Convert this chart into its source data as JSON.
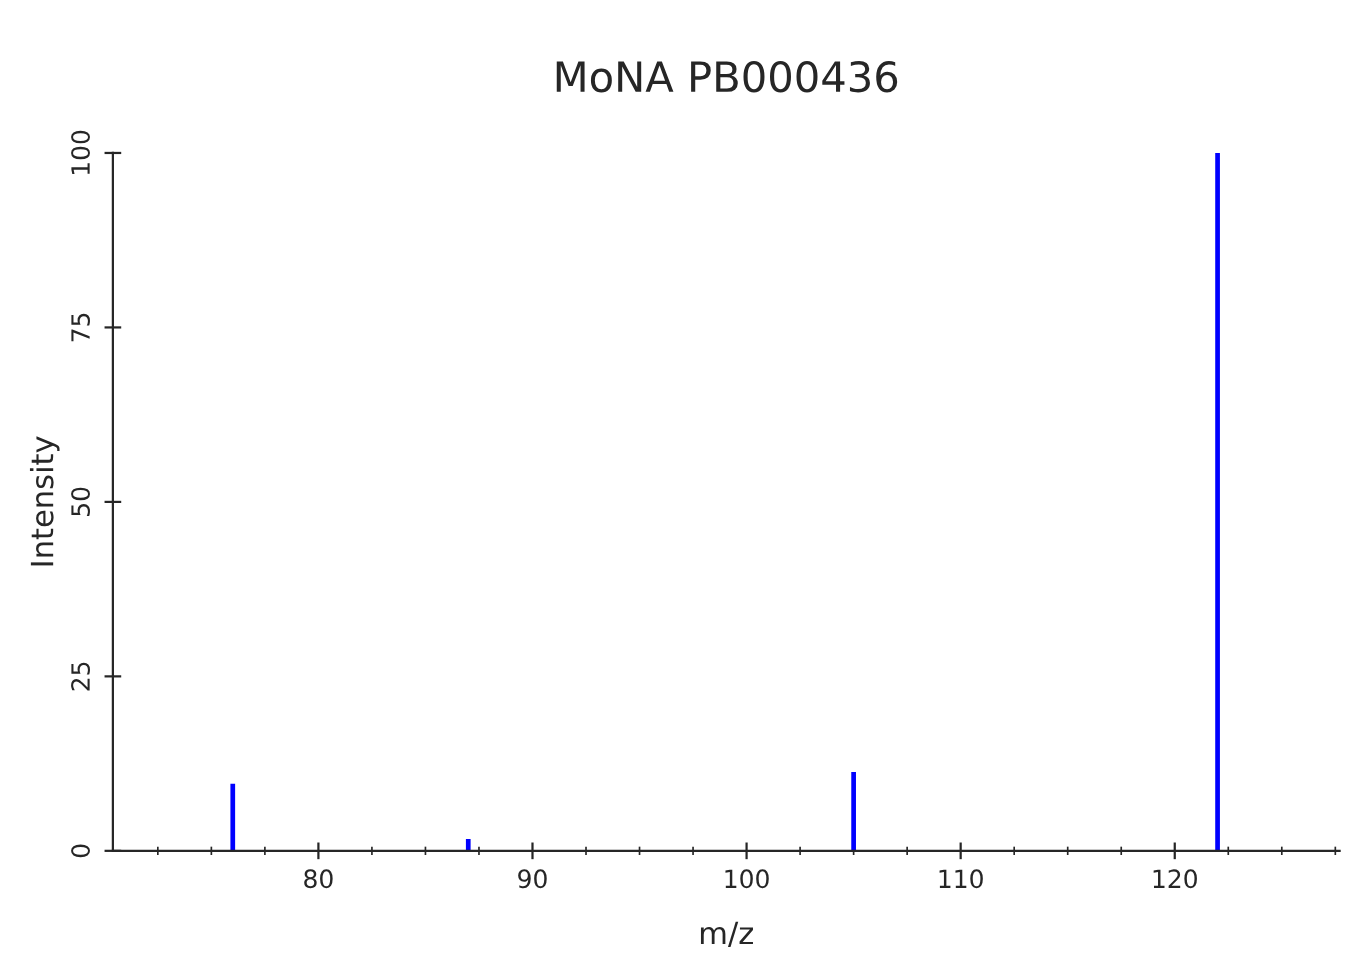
{
  "chart_data": {
    "type": "bar",
    "title": "MoNA PB000436",
    "xlabel": "m/z",
    "ylabel": "Intensity",
    "x": [
      76.0,
      87.0,
      105.0,
      122.0
    ],
    "values": [
      9.6,
      1.7,
      11.3,
      100
    ],
    "color": "#0000ff",
    "xlim": [
      70.4,
      127.7
    ],
    "xticks": [
      80,
      90,
      100,
      110,
      120
    ],
    "ylim": [
      0,
      100
    ],
    "yticks": [
      0,
      25,
      50,
      75,
      100
    ],
    "grid": false,
    "legend": false
  }
}
